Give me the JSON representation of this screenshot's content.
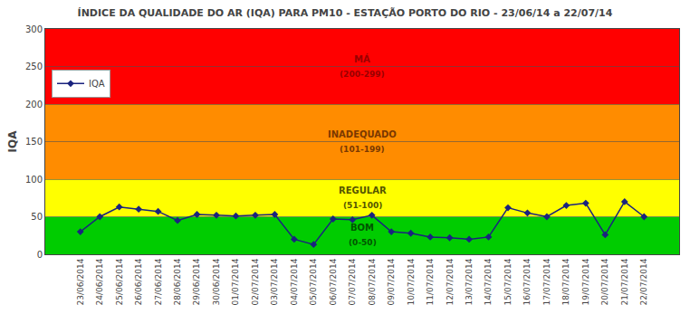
{
  "chart_data": {
    "type": "line",
    "title": "ÍNDICE DA QUALIDADE DO AR (IQA) PARA PM10 - ESTAÇÃO PORTO DO RIO - 23/06/14 a 22/07/14",
    "y_label": "IQA",
    "categories": [
      "23/06/2014",
      "24/06/2014",
      "25/06/2014",
      "26/06/2014",
      "27/06/2014",
      "28/06/2014",
      "29/06/2014",
      "30/06/2014",
      "01/07/2014",
      "02/07/2014",
      "03/07/2014",
      "04/07/2014",
      "05/07/2014",
      "06/07/2014",
      "07/07/2014",
      "08/07/2014",
      "09/07/2014",
      "10/07/2014",
      "11/07/2014",
      "12/07/2014",
      "13/07/2014",
      "14/07/2014",
      "15/07/2014",
      "16/07/2014",
      "17/07/2014",
      "18/07/2014",
      "19/07/2014",
      "20/07/2014",
      "21/07/2014",
      "22/07/2014"
    ],
    "series": [
      {
        "name": "IQA",
        "color": "#1a237e",
        "marker": "diamond",
        "values": [
          30,
          50,
          63,
          60,
          57,
          45,
          53,
          52,
          51,
          52,
          53,
          20,
          13,
          47,
          46,
          52,
          30,
          28,
          23,
          22,
          20,
          23,
          62,
          55,
          50,
          65,
          68,
          26,
          70,
          50
        ]
      }
    ],
    "ylim": [
      0,
      300
    ],
    "yticks": [
      0,
      50,
      100,
      150,
      200,
      250,
      300
    ],
    "grid": true,
    "legend": "upper left",
    "zones": [
      {
        "ymin": 0,
        "ymax": 50,
        "color": "#00cc00",
        "label": "BOM",
        "sub": "(0-50)",
        "label_color": "#005500"
      },
      {
        "ymin": 50,
        "ymax": 100,
        "color": "#ffff00",
        "label": "REGULAR",
        "sub": "(51-100)",
        "label_color": "#555500"
      },
      {
        "ymin": 100,
        "ymax": 200,
        "color": "#ff8c00",
        "label": "INADEQUADO",
        "sub": "(101-199)",
        "label_color": "#7a3800"
      },
      {
        "ymin": 200,
        "ymax": 300,
        "color": "#ff0000",
        "label": "MÁ",
        "sub": "(200-299)",
        "label_color": "#990000"
      }
    ]
  }
}
